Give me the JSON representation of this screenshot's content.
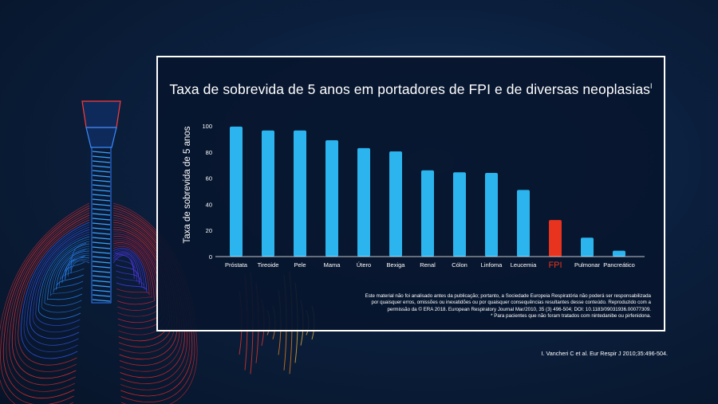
{
  "chart_data": {
    "type": "bar",
    "title": "Taxa de sobrevida de 5 anos em portadores de FPI e de diversas neoplasias",
    "title_superscript": "I",
    "ylabel": "Taxa de sobrevida de 5 anos",
    "xlabel": "",
    "ylim": [
      0,
      100
    ],
    "yticks": [
      0,
      20,
      40,
      60,
      80,
      100
    ],
    "categories": [
      "Próstata",
      "Tireoide",
      "Pele",
      "Mama",
      "Útero",
      "Bexiga",
      "Renal",
      "Cólon",
      "Linfoma",
      "Leucemia",
      "FPI",
      "Pulmonar",
      "Pancreático"
    ],
    "values": [
      99.5,
      96.5,
      96.5,
      89,
      83,
      80.5,
      66,
      64.5,
      64,
      51,
      28,
      14.5,
      4.5
    ],
    "highlight_category": "FPI",
    "colors": {
      "bar": "#2bb4ee",
      "highlight": "#e8331f",
      "axis": "#ffffff"
    }
  },
  "note_lines": [
    "Este material não foi analisado antes da publicação; portanto, a Sociedade Europeia Respiratória não poderá ser responsabilizada",
    "por quaisquer erros, omissões ou inexatidões ou por quaisquer consequências resultantes desse conteúdo. Reproduzido com a",
    "permissão da © ERA 2018. European Respiratory Journal Mar/2010, 35 (3) 496-504; DOI: 10.1183/09031936.00077309.",
    "* Para pacientes que não foram tratados com nintedanibe ou pirfenidona."
  ],
  "reference": "I. Vancheri C et al. Eur Respir J 2010;35:496-504."
}
